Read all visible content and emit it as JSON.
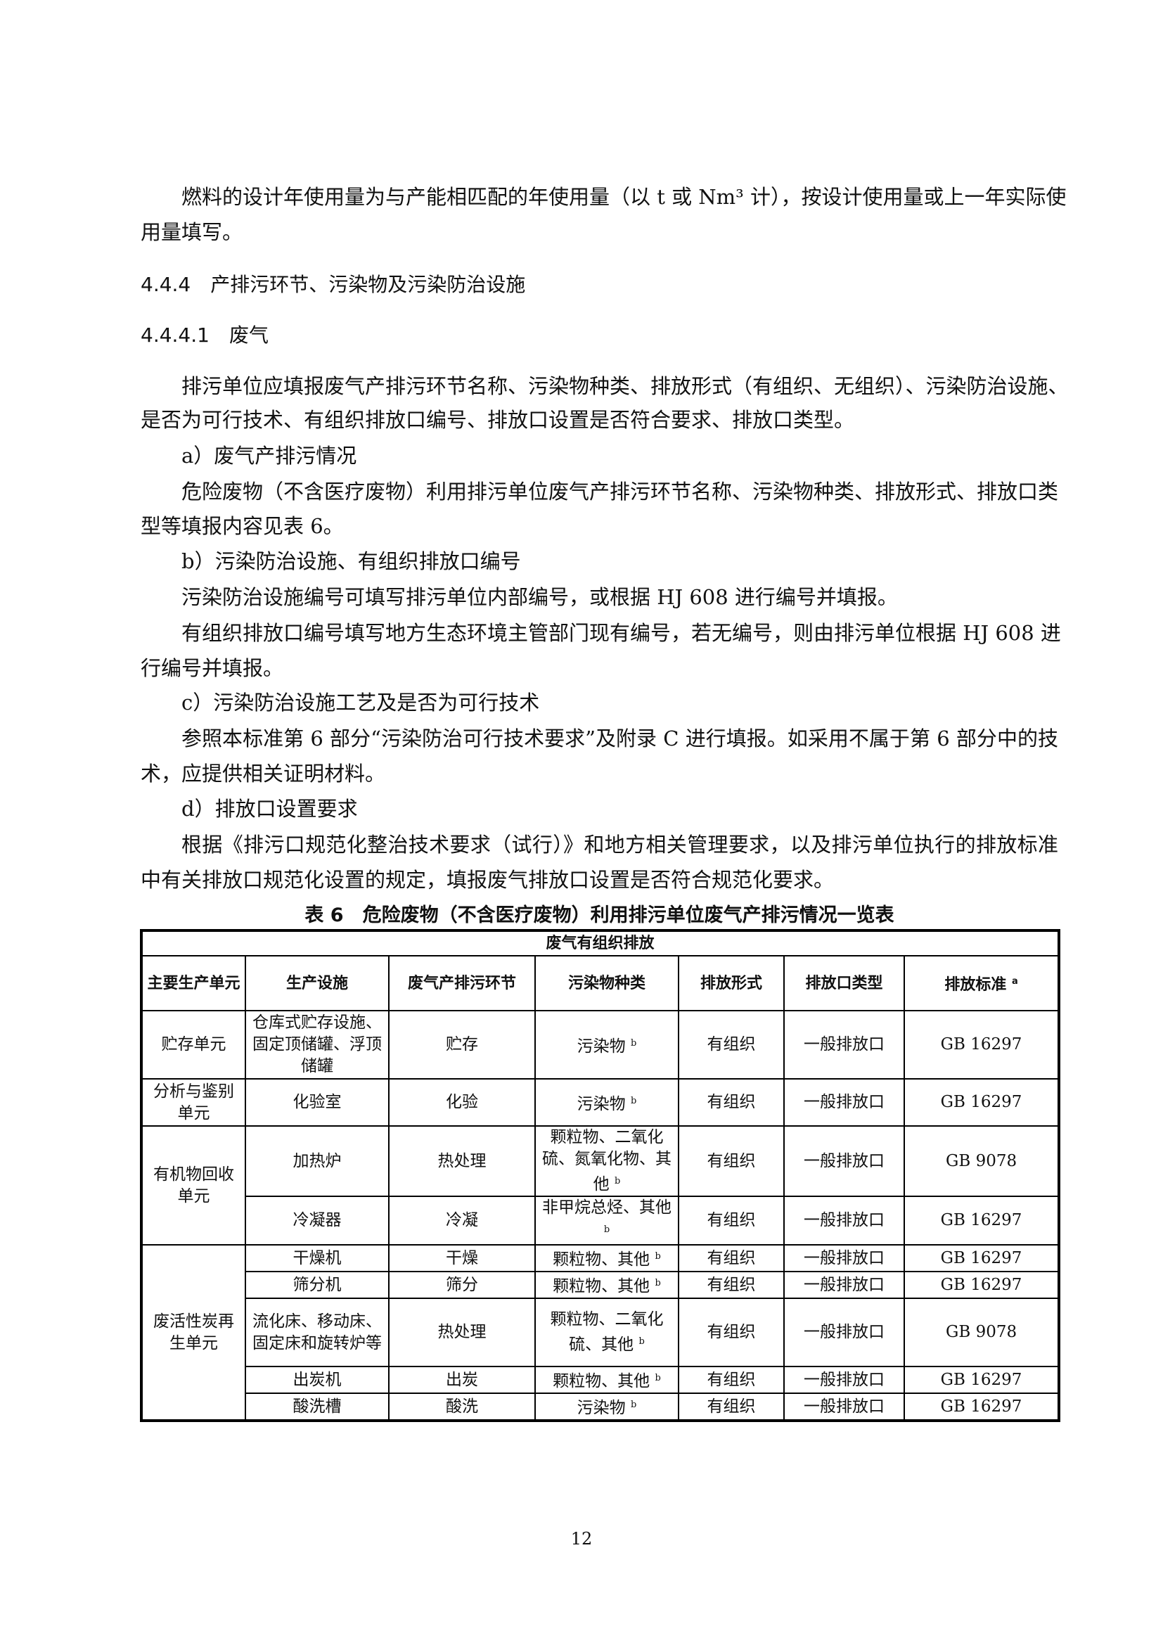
{
  "paragraphs": {
    "p1": [
      "燃料的设计年使用量为与产能相匹配的年使用量（以 t 或 Nm³ 计），按设计使用量或上一年实际使",
      "用量填写。"
    ],
    "h444": "4.4.4　产排污环节、污染物及污染防治设施",
    "h4441": "4.4.4.1　废气",
    "p2": [
      "排污单位应填报废气产排污环节名称、污染物种类、排放形式（有组织、无组织）、污染防治设施、",
      "是否为可行技术、有组织排放口编号、排放口设置是否符合要求、排放口类型。"
    ],
    "a": "a）废气产排污情况",
    "p3": [
      "危险废物（不含医疗废物）利用排污单位废气产排污环节名称、污染物种类、排放形式、排放口类",
      "型等填报内容见表 6。"
    ],
    "b": "b）污染防治设施、有组织排放口编号",
    "p4": "污染防治设施编号可填写排污单位内部编号，或根据 HJ 608 进行编号并填报。",
    "p5": [
      "有组织排放口编号填写地方生态环境主管部门现有编号，若无编号，则由排污单位根据 HJ 608 进",
      "行编号并填报。"
    ],
    "c": "c）污染防治设施工艺及是否为可行技术",
    "p6": [
      "参照本标准第 6 部分“污染防治可行技术要求”及附录 C 进行填报。如采用不属于第 6 部分中的技",
      "术，应提供相关证明材料。"
    ],
    "d": "d）排放口设置要求",
    "p7": [
      "根据《排污口规范化整治技术要求（试行）》和地方相关管理要求，以及排污单位执行的排放标准",
      "中有关排放口规范化设置的规定，填报废气排放口设置是否符合规范化要求。"
    ]
  },
  "table": {
    "caption": "表 6　危险废物（不含医疗废物）利用排污单位废气产排污情况一览表",
    "group_header": "废气有组织排放",
    "headers": [
      "主要生产单元",
      "生产设施",
      "废气产排污环节",
      "污染物种类",
      "排放形式",
      "排放口类型",
      "排放标准"
    ],
    "header_note": "a",
    "units": [
      "贮存单元",
      "分析与鉴别单元",
      "有机物回收单元",
      "废活性炭再生单元"
    ],
    "rows": [
      [
        "仓库式贮存设施、固定顶储罐、浮顶储罐",
        "贮存",
        "污染物",
        "有组织",
        "一般排放口",
        "GB 16297"
      ],
      [
        "化验室",
        "化验",
        "污染物",
        "有组织",
        "一般排放口",
        "GB 16297"
      ],
      [
        "加热炉",
        "热处理",
        "颗粒物、二氧化硫、氮氧化物、其他",
        "有组织",
        "一般排放口",
        "GB 9078"
      ],
      [
        "冷凝器",
        "冷凝",
        "非甲烷总烃、其他",
        "有组织",
        "一般排放口",
        "GB 16297"
      ],
      [
        "干燥机",
        "干燥",
        "颗粒物、其他",
        "有组织",
        "一般排放口",
        "GB 16297"
      ],
      [
        "筛分机",
        "筛分",
        "颗粒物、其他",
        "有组织",
        "一般排放口",
        "GB 16297"
      ],
      [
        "流化床、移动床、固定床和旋转炉等",
        "热处理",
        "颗粒物、二氧化硫、其他",
        "有组织",
        "一般排放口",
        "GB 9078"
      ],
      [
        "出炭机",
        "出炭",
        "颗粒物、其他",
        "有组织",
        "一般排放口",
        "GB 16297"
      ],
      [
        "酸洗槽",
        "酸洗",
        "污染物",
        "有组织",
        "一般排放口",
        "GB 16297"
      ]
    ],
    "pollutant_note": "b"
  },
  "page_number": "12"
}
